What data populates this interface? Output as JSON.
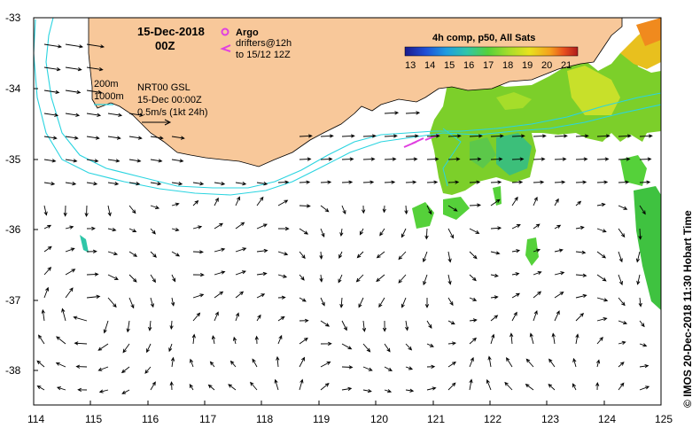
{
  "title": {
    "date": "15-Dec-2018",
    "time": "00Z"
  },
  "legend": {
    "argo": "Argo",
    "drifters_line1": "drifters@12h",
    "drifters_line2": "to 15/12 12Z",
    "contour_200": "200m",
    "contour_1000": "1000m",
    "product": "NRT00 GSL",
    "product_time": "15-Dec 00:00Z",
    "scale": "0.5m/s (1kt 24h)"
  },
  "colorbar": {
    "title": "4h comp, p50, All Sats",
    "ticks": [
      "13",
      "14",
      "15",
      "16",
      "17",
      "18",
      "19",
      "20",
      "21"
    ],
    "colors": [
      "#1a1a8c",
      "#1f4fd6",
      "#1f9de0",
      "#2fc6a8",
      "#55d13a",
      "#a6dd2a",
      "#e8e21e",
      "#f5a01e",
      "#e8501e",
      "#b01c1c"
    ]
  },
  "axes": {
    "x_ticks": [
      "114",
      "115",
      "116",
      "117",
      "118",
      "119",
      "120",
      "121",
      "122",
      "123",
      "124",
      "125"
    ],
    "y_ticks": [
      "-33",
      "-34",
      "-35",
      "-36",
      "-37",
      "-38"
    ],
    "x_range": [
      114,
      125
    ],
    "y_range": [
      -38.5,
      -33
    ]
  },
  "side_caption": "© IMOS 20-Dec-2018 11:30 Hobart Time",
  "colors": {
    "land": "#f8c89a",
    "contour": "#2ad4e0",
    "argo": "#e040e0"
  }
}
